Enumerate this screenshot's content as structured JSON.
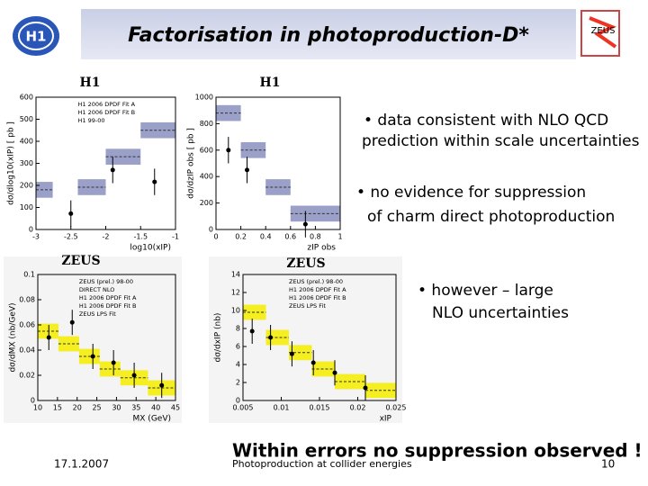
{
  "header": {
    "title": "Factorisation in photoproduction-D*",
    "logo_left": "H1",
    "logo_right": "ZEUS"
  },
  "plots": [
    {
      "label": "H1",
      "y_label": "dσ/dlog10(xIP) [ pb ]",
      "x_label": "log10(xIP)",
      "yticks": [
        "0",
        "100",
        "200",
        "300",
        "400",
        "500",
        "600"
      ],
      "xticks": [
        "-3",
        "-2.5",
        "-2",
        "-1.5",
        "-1"
      ],
      "legend": [
        "H1 2006 DPDF Fit A",
        "H1 2006 DPDF Fit B",
        "H1 99-00"
      ]
    },
    {
      "label": "H1",
      "y_label": "dσ/dzIP obs [ pb ]",
      "x_label": "zIP obs",
      "yticks": [
        "0",
        "200",
        "400",
        "600",
        "800",
        "1000"
      ],
      "xticks": [
        "0",
        "0.2",
        "0.4",
        "0.6",
        "0.8",
        "1"
      ],
      "legend": []
    },
    {
      "label": "ZEUS",
      "y_label": "dσ/dMX (nb/GeV)",
      "x_label": "MX (GeV)",
      "yticks": [
        "0",
        "0.02",
        "0.04",
        "0.06",
        "0.08",
        "0.1"
      ],
      "xticks": [
        "10",
        "15",
        "20",
        "25",
        "30",
        "35",
        "40",
        "45"
      ],
      "legend": [
        "ZEUS (prel.) 98-00",
        "DIRECT NLO",
        "H1 2006 DPDF Fit A",
        "H1 2006 DPDF Fit B",
        "ZEUS LPS Fit"
      ]
    },
    {
      "label": "ZEUS",
      "y_label": "dσ/dxIP (nb)",
      "x_label": "xIP",
      "yticks": [
        "0",
        "2",
        "4",
        "6",
        "8",
        "10",
        "12",
        "14"
      ],
      "xticks": [
        "0.005",
        "0.01",
        "0.015",
        "0.02",
        "0.025"
      ],
      "legend": [
        "ZEUS (prel.) 98-00",
        "H1 2006 DPDF Fit A",
        "H1 2006 DPDF Fit B",
        "ZEUS LPS Fit"
      ]
    }
  ],
  "bullets": [
    {
      "lines": [
        "• data consistent with NLO QCD",
        "prediction within scale uncertainties"
      ]
    },
    {
      "lines": [
        "• no evidence for suppression",
        "of charm direct photoproduction"
      ]
    },
    {
      "lines": [
        "• however – large",
        "NLO uncertainties"
      ]
    }
  ],
  "conclusion": "Within errors no suppression observed !",
  "footer": {
    "date": "17.1.2007",
    "subtitle": "Photoproduction at collider energies",
    "page": "10"
  }
}
